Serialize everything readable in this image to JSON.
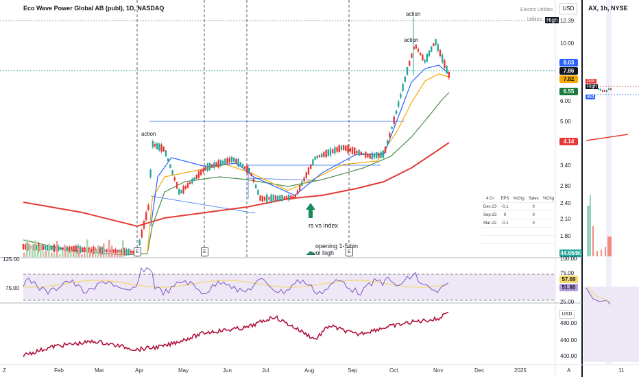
{
  "header": {
    "title": "Eco Wave Power Global AB (publ), 1D, NASDAQ",
    "right_title": "AX, 1h, NYSE",
    "sector": "Electric Utilities",
    "industry": "Utilities",
    "currency": "USD",
    "high_label": "High"
  },
  "price_axis": {
    "labels": [
      "12.39",
      "10.00",
      "8.03",
      "7.86",
      "7.82",
      "6.55",
      "6.00",
      "5.00",
      "4.14",
      "3.40",
      "2.80",
      "2.40",
      "2.10",
      "1.80",
      "44.654K",
      "100.00"
    ],
    "badges": [
      {
        "value": "12.39",
        "color": "#ffffff"
      },
      {
        "value": "8.03",
        "color": "#2962ff"
      },
      {
        "value": "7.86",
        "color": "#131722"
      },
      {
        "value": "7.82",
        "color": "#f7a600"
      },
      {
        "value": "6.55",
        "color": "#1b7a3a"
      },
      {
        "value": "4.14",
        "color": "#e53935"
      },
      {
        "value": "44.654K",
        "color": "#26a69a"
      }
    ]
  },
  "rsi_panel": {
    "left_labels": [
      "125.00",
      "75.00"
    ],
    "right_labels": [
      "75.00",
      "57.69",
      "51.80",
      "25.00"
    ],
    "value_yellow": "57.69",
    "value_purple": "51.80"
  },
  "rs_panel": {
    "currency": "USD",
    "labels": [
      "480.00",
      "440.00",
      "400.00"
    ]
  },
  "time_axis": {
    "labels": [
      "Feb",
      "Mar",
      "Apr",
      "May",
      "Jun",
      "Jul",
      "Aug",
      "Sep",
      "Oct",
      "Nov",
      "Dec",
      "2025"
    ],
    "right_labels": [
      "11"
    ],
    "z_label": "Z",
    "a_label": "A"
  },
  "annotations": {
    "action1": "action",
    "action2": "action",
    "action3": "action",
    "rs_vs_index": "rs vs index",
    "opening": "opening 1-5 bin",
    "vol_high": "vol high",
    "earnings": "E"
  },
  "right_panel": {
    "ask": "Ask",
    "high": "High",
    "bid": "Bid"
  },
  "fundamentals": {
    "headers": [
      "4 Cr",
      "EPS",
      "%Chg",
      "Sales",
      "%Chg"
    ],
    "rows": [
      [
        "Dec-23",
        "-0.1",
        "",
        "0",
        ""
      ],
      [
        "Sep-23",
        "0",
        "",
        "0",
        ""
      ],
      [
        "Mar-22",
        "-0.1",
        "",
        "0",
        ""
      ]
    ]
  },
  "colors": {
    "up": "#26a69a",
    "down": "#e53935",
    "ma_blue": "#2962ff",
    "ma_orange": "#f7a600",
    "ma_green": "#4c8c4a",
    "ma_red": "#e53935",
    "rs_line": "#b0103a",
    "rsi_purple": "#7e57c2",
    "rsi_yellow": "#f5d76e"
  }
}
